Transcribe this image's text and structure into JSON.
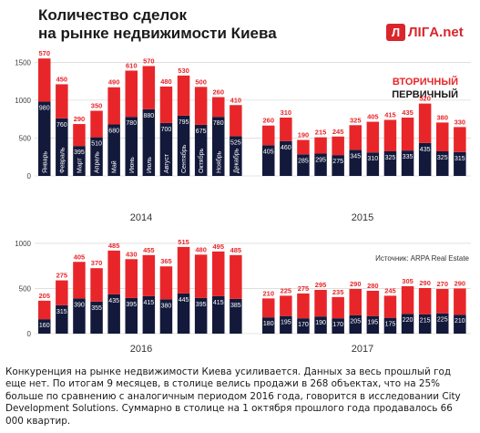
{
  "title_line1": "Количество сделок",
  "title_line2": "на рынке недвижимости Киева",
  "logo": {
    "badge": "Л",
    "text": "ЛIГA.net"
  },
  "legend": {
    "secondary": "ВТОРИЧНЫЙ",
    "primary": "ПЕРВИЧНЫЙ"
  },
  "source": "Источник: ARPA Real Estate",
  "colors": {
    "secondary": "#e8262a",
    "primary": "#13193a",
    "text": "#1a1a1a",
    "grid": "#cccccc"
  },
  "caption": "Конкуренция на рынке недвижимости Киева усиливается. Данных за весь прошлый год еще нет. По итогам 9 месяцев, в столице велись продажи в 268 объектах, что на 25% больше по сравнению с аналогичным периодом 2016 года, говорится в исследовании City Development Solutions. Суммарно в столице на 1 октября прошлого года продавалось 66 000 квартир.",
  "chart_data": [
    {
      "type": "bar",
      "stacked": true,
      "year": "2014",
      "categories": [
        "Январь",
        "Февраль",
        "Март",
        "Апрель",
        "Май",
        "Июнь",
        "Июль",
        "Август",
        "Сентябрь",
        "Октябрь",
        "Ноябрь",
        "Декабрь"
      ],
      "series": [
        {
          "name": "ПЕРВИЧНЫЙ",
          "values": [
            980,
            760,
            395,
            510,
            680,
            780,
            880,
            700,
            795,
            675,
            780,
            525
          ]
        },
        {
          "name": "ВТОРИЧНЫЙ",
          "values": [
            570,
            450,
            290,
            350,
            490,
            610,
            570,
            480,
            530,
            500,
            260,
            410
          ]
        }
      ],
      "yticks": [
        0,
        500,
        1000,
        1500
      ],
      "ylim": [
        0,
        1600
      ]
    },
    {
      "type": "bar",
      "stacked": true,
      "year": "2015",
      "categories": [
        "Январь",
        "Февраль",
        "Март",
        "Апрель",
        "Май",
        "Июнь",
        "Июль",
        "Август",
        "Сентябрь",
        "Октябрь",
        "Ноябрь",
        "Декабрь"
      ],
      "series": [
        {
          "name": "ПЕРВИЧНЫЙ",
          "values": [
            405,
            460,
            285,
            295,
            275,
            345,
            310,
            325,
            335,
            435,
            325,
            315
          ]
        },
        {
          "name": "ВТОРИЧНЫЙ",
          "values": [
            260,
            310,
            190,
            215,
            245,
            325,
            405,
            415,
            435,
            520,
            380,
            330
          ]
        }
      ],
      "yticks": [
        0,
        500,
        1000,
        1500
      ],
      "ylim": [
        0,
        1600
      ]
    },
    {
      "type": "bar",
      "stacked": true,
      "year": "2016",
      "categories": [
        "Январь",
        "Февраль",
        "Март",
        "Апрель",
        "Май",
        "Июнь",
        "Июль",
        "Август",
        "Сентябрь",
        "Октябрь",
        "Ноябрь",
        "Декабрь"
      ],
      "series": [
        {
          "name": "ПЕРВИЧНЫЙ",
          "values": [
            160,
            315,
            390,
            355,
            435,
            395,
            415,
            380,
            445,
            395,
            415,
            385
          ]
        },
        {
          "name": "ВТОРИЧНЫЙ",
          "values": [
            205,
            275,
            405,
            370,
            485,
            430,
            455,
            365,
            515,
            480,
            495,
            485
          ]
        }
      ],
      "yticks": [
        0,
        500,
        1000
      ],
      "ylim": [
        0,
        1050
      ]
    },
    {
      "type": "bar",
      "stacked": true,
      "year": "2017",
      "categories": [
        "Январь",
        "Февраль",
        "Март",
        "Апрель",
        "Май",
        "Июнь",
        "Июль",
        "Август",
        "Сентябрь",
        "Октябрь",
        "Ноябрь",
        "Декабрь"
      ],
      "series": [
        {
          "name": "ПЕРВИЧНЫЙ",
          "values": [
            180,
            195,
            170,
            190,
            170,
            205,
            195,
            175,
            220,
            215,
            225,
            210
          ]
        },
        {
          "name": "ВТОРИЧНЫЙ",
          "values": [
            210,
            225,
            275,
            295,
            235,
            290,
            280,
            245,
            305,
            290,
            270,
            290
          ]
        }
      ],
      "yticks": [
        0,
        500,
        1000
      ],
      "ylim": [
        0,
        1050
      ]
    }
  ]
}
